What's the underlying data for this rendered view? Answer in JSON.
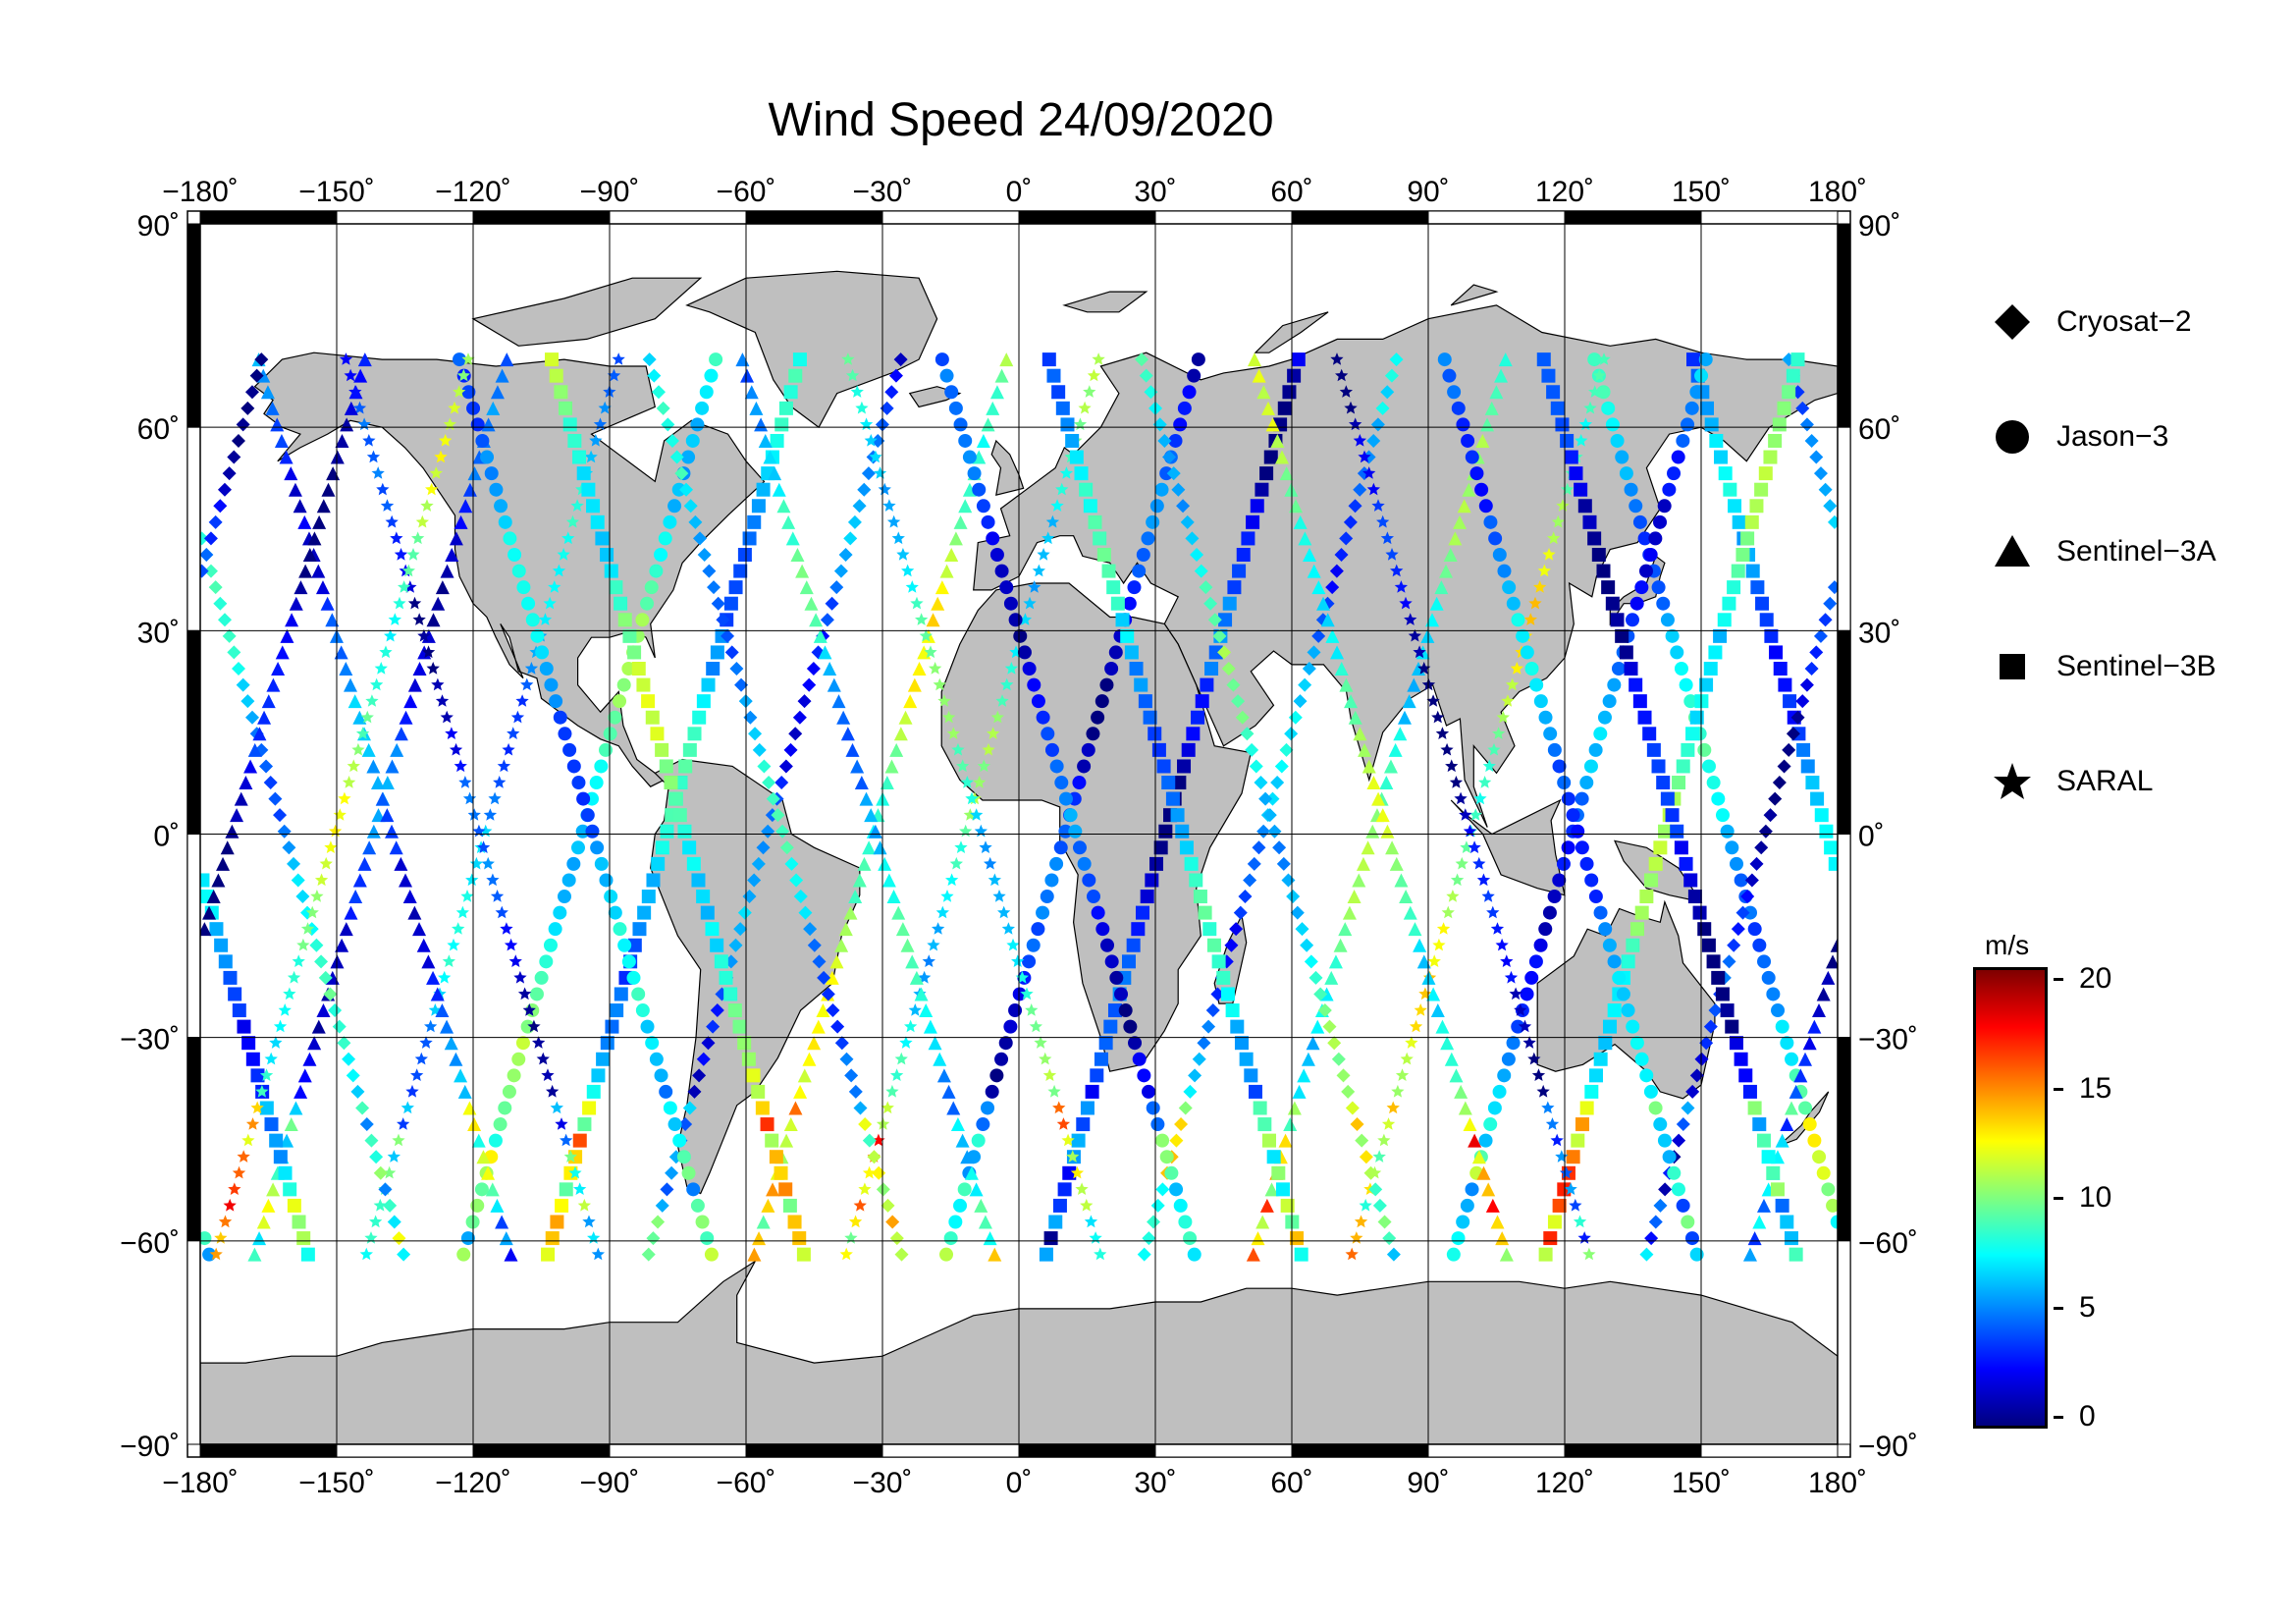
{
  "title": "Wind Speed 24/09/2020",
  "map": {
    "projection": "equirectangular",
    "lon_range": [
      -180,
      180
    ],
    "lat_range": [
      -90,
      90
    ],
    "grid_step_lon": 30,
    "grid_step_lat": 30,
    "lon_ticks": [
      "−180˚",
      "−150˚",
      "−120˚",
      "−90˚",
      "−60˚",
      "−30˚",
      "0˚",
      "30˚",
      "60˚",
      "90˚",
      "120˚",
      "150˚",
      "180˚"
    ],
    "lat_ticks_left": [
      "90˚",
      "60˚",
      "30˚",
      "0˚",
      "−30˚",
      "−60˚",
      "−90˚"
    ],
    "lat_ticks_right": [
      "90˚",
      "60˚",
      "30˚",
      "0˚",
      "−30˚",
      "−60˚",
      "−90˚"
    ],
    "land_color": "#bfbfbf",
    "ocean_color": "#ffffff"
  },
  "legend": [
    {
      "symbol": "diamond-icon",
      "label": "Cryosat−2"
    },
    {
      "symbol": "circle-icon",
      "label": "Jason−3"
    },
    {
      "symbol": "triangle-icon",
      "label": "Sentinel−3A"
    },
    {
      "symbol": "square-icon",
      "label": "Sentinel−3B"
    },
    {
      "symbol": "star-icon",
      "label": "SARAL"
    }
  ],
  "colorbar": {
    "unit": "m/s",
    "min": 0,
    "max": 20,
    "ticks": [
      {
        "value": 20,
        "label": "20"
      },
      {
        "value": 15,
        "label": "15"
      },
      {
        "value": 10,
        "label": "10"
      },
      {
        "value": 5,
        "label": "5"
      },
      {
        "value": 0,
        "label": "0"
      }
    ],
    "colors": [
      "#00007f",
      "#0000ff",
      "#007fff",
      "#00ffff",
      "#7fff7f",
      "#ffff00",
      "#ff7f00",
      "#ff0000",
      "#7f0000"
    ]
  }
}
